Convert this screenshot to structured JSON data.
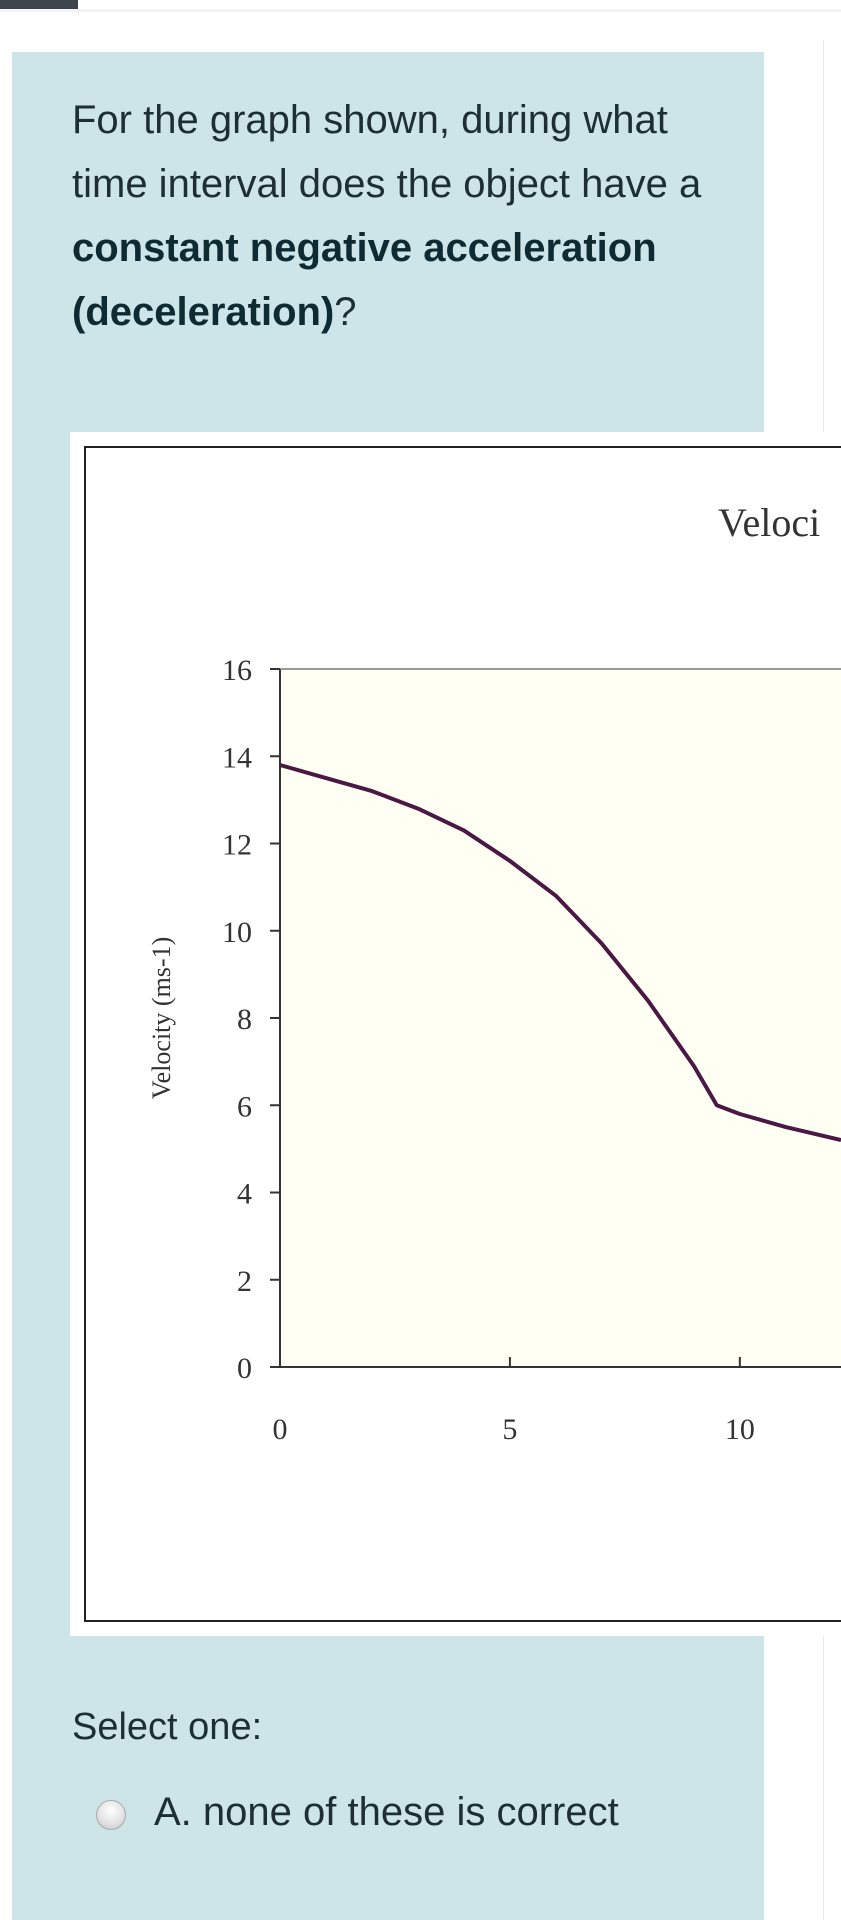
{
  "question": {
    "text_before": "For the graph shown, during what time interval does the object have a ",
    "bold_1": "constant negative acceleration (deceleration)",
    "text_after": "?"
  },
  "chart_data": {
    "type": "line",
    "title": "Veloci",
    "ylabel": "Velocity (ms-1)",
    "xlabel": "",
    "x_ticks": [
      0,
      5,
      10
    ],
    "y_ticks": [
      0,
      2,
      4,
      6,
      8,
      10,
      12,
      14,
      16
    ],
    "xlim": [
      0,
      12.2
    ],
    "ylim": [
      0,
      16
    ],
    "grid": false,
    "series": [
      {
        "color": "#4b1844",
        "x": [
          0,
          1,
          2,
          3,
          4,
          5,
          6,
          7,
          8,
          9,
          9.5,
          10,
          11,
          12.2
        ],
        "y": [
          13.8,
          13.5,
          13.2,
          12.8,
          12.3,
          11.6,
          10.8,
          9.7,
          8.4,
          6.9,
          6.0,
          5.8,
          5.5,
          5.2
        ]
      }
    ]
  },
  "select_label": "Select one:",
  "options": [
    {
      "letter": "A.",
      "text": "A. none of these is correct"
    }
  ],
  "colors": {
    "panel": "#cde5e9",
    "plot_bg": "#fffff4",
    "line": "#4b1844"
  }
}
